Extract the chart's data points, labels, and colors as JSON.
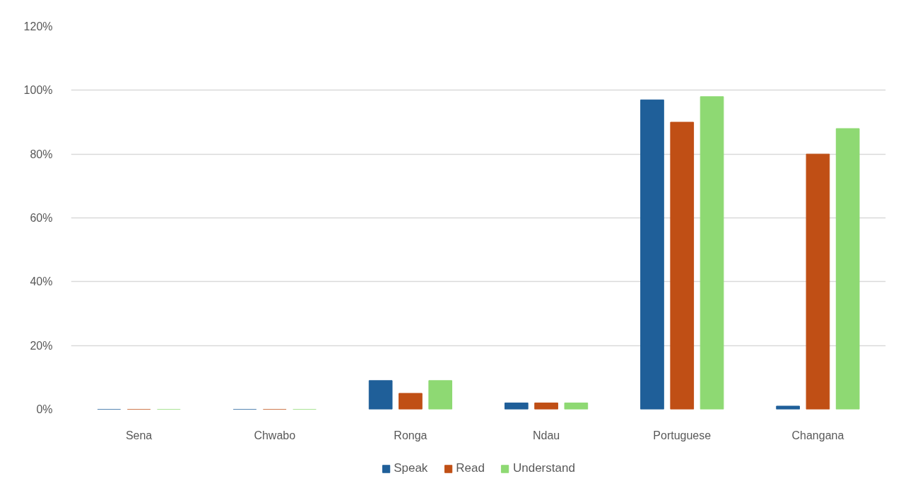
{
  "chart_data": {
    "type": "bar",
    "categories": [
      "Sena",
      "Chwabo",
      "Ronga",
      "Ndau",
      "Portuguese",
      "Changana"
    ],
    "series": [
      {
        "name": "Speak",
        "color": "#1f5f99",
        "values": [
          0,
          0,
          9,
          2,
          97,
          1
        ]
      },
      {
        "name": "Read",
        "color": "#c04f15",
        "values": [
          0,
          0,
          5,
          2,
          90,
          80
        ]
      },
      {
        "name": "Understand",
        "color": "#8ed973",
        "values": [
          0,
          0,
          9,
          2,
          98,
          88
        ]
      }
    ],
    "ylim": [
      0,
      120
    ],
    "yticks": [
      {
        "value": 0,
        "label": "0%"
      },
      {
        "value": 20,
        "label": "20%"
      },
      {
        "value": 40,
        "label": "40%"
      },
      {
        "value": 60,
        "label": "60%"
      },
      {
        "value": 80,
        "label": "80%"
      },
      {
        "value": 100,
        "label": "100%"
      },
      {
        "value": 120,
        "label": "120%"
      }
    ],
    "grid": "y",
    "legend": "bottom"
  }
}
